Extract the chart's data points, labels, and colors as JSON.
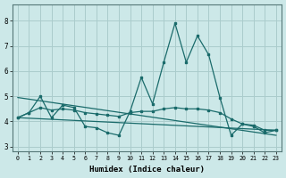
{
  "xlabel": "Humidex (Indice chaleur)",
  "xlim": [
    -0.5,
    23.5
  ],
  "ylim": [
    2.8,
    8.65
  ],
  "yticks": [
    3,
    4,
    5,
    6,
    7,
    8
  ],
  "xticks": [
    0,
    1,
    2,
    3,
    4,
    5,
    6,
    7,
    8,
    9,
    10,
    11,
    12,
    13,
    14,
    15,
    16,
    17,
    18,
    19,
    20,
    21,
    22,
    23
  ],
  "bg_color": "#cce8e8",
  "grid_color": "#aacccc",
  "line_color": "#1a6b6b",
  "x": [
    0,
    1,
    2,
    3,
    4,
    5,
    6,
    7,
    8,
    9,
    10,
    11,
    12,
    13,
    14,
    15,
    16,
    17,
    18,
    19,
    20,
    21,
    22,
    23
  ],
  "series_main": [
    4.15,
    4.35,
    5.0,
    4.15,
    4.65,
    4.55,
    3.8,
    3.75,
    3.55,
    3.45,
    4.4,
    5.75,
    4.7,
    6.35,
    7.9,
    6.35,
    7.4,
    6.65,
    4.95,
    3.45,
    3.9,
    3.8,
    3.55,
    3.65
  ],
  "series_smooth": [
    4.15,
    4.35,
    4.55,
    4.45,
    4.5,
    4.45,
    4.35,
    4.3,
    4.25,
    4.2,
    4.35,
    4.4,
    4.4,
    4.5,
    4.55,
    4.5,
    4.5,
    4.45,
    4.35,
    4.1,
    3.9,
    3.85,
    3.65,
    3.65
  ],
  "line1_x": [
    0,
    23
  ],
  "line1_y": [
    4.15,
    3.65
  ],
  "line2_x": [
    0,
    23
  ],
  "line2_y": [
    4.95,
    3.45
  ]
}
